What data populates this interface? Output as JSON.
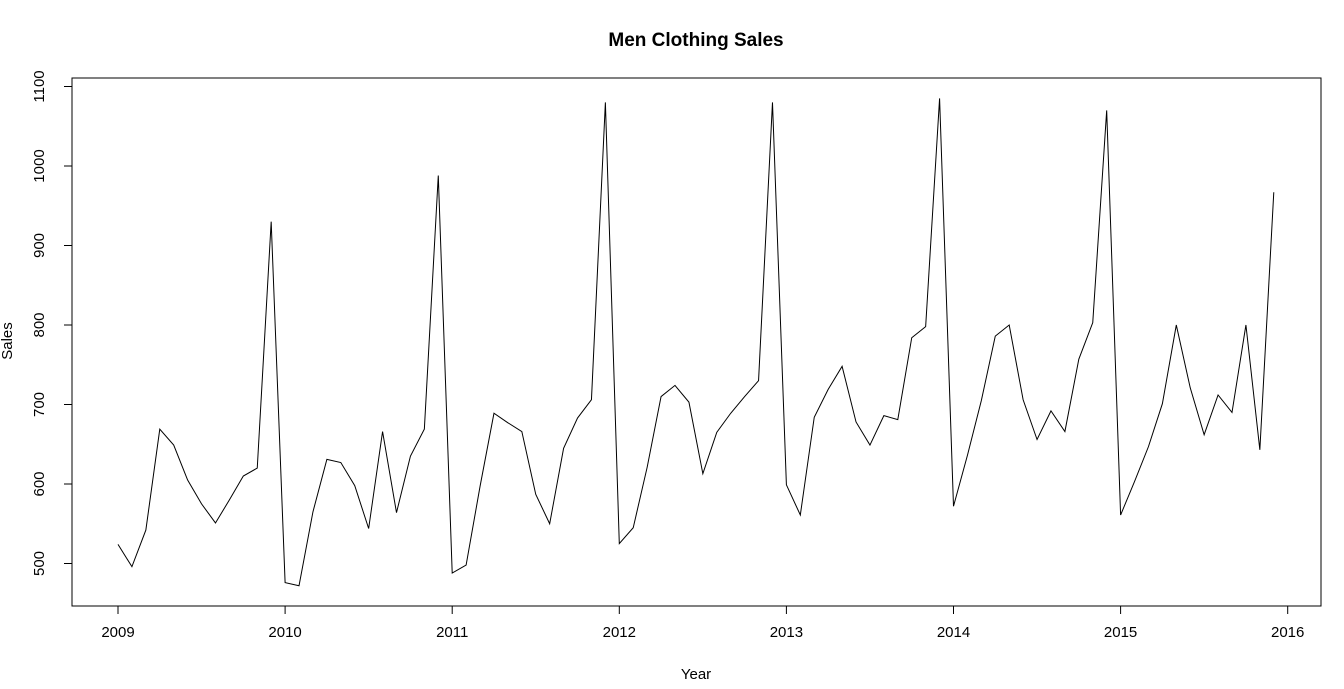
{
  "chart_data": {
    "type": "line",
    "title": "Men Clothing Sales",
    "xlabel": "Year",
    "ylabel": "Sales",
    "xlim": [
      2009,
      2016
    ],
    "ylim": [
      440,
      1110
    ],
    "x_ticks": [
      "2009",
      "2010",
      "2011",
      "2012",
      "2013",
      "2014",
      "2015",
      "2016"
    ],
    "y_ticks": [
      "500",
      "600",
      "700",
      "800",
      "900",
      "1000",
      "1100"
    ],
    "grid": false,
    "legend": "none",
    "line_color": "#000000",
    "x_start": "2009-01",
    "frequency": "monthly",
    "series": [
      {
        "values": [
          524,
          496,
          542,
          669,
          649,
          605,
          575,
          551,
          580,
          610,
          620,
          930,
          476,
          472,
          565,
          631,
          627,
          598,
          544,
          666,
          564,
          635,
          669,
          988,
          488,
          498,
          597,
          689,
          677,
          666,
          587,
          550,
          645,
          683,
          706,
          1080,
          525,
          545,
          621,
          710,
          724,
          703,
          613,
          665,
          689,
          710,
          730,
          1080,
          599,
          561,
          684,
          719,
          748,
          678,
          649,
          686,
          681,
          784,
          798,
          1085,
          572,
          636,
          705,
          786,
          800,
          706,
          656,
          692,
          666,
          757,
          803,
          1070,
          561,
          603,
          647,
          701,
          800,
          721,
          662,
          712,
          690,
          800,
          643,
          967
        ]
      }
    ]
  }
}
